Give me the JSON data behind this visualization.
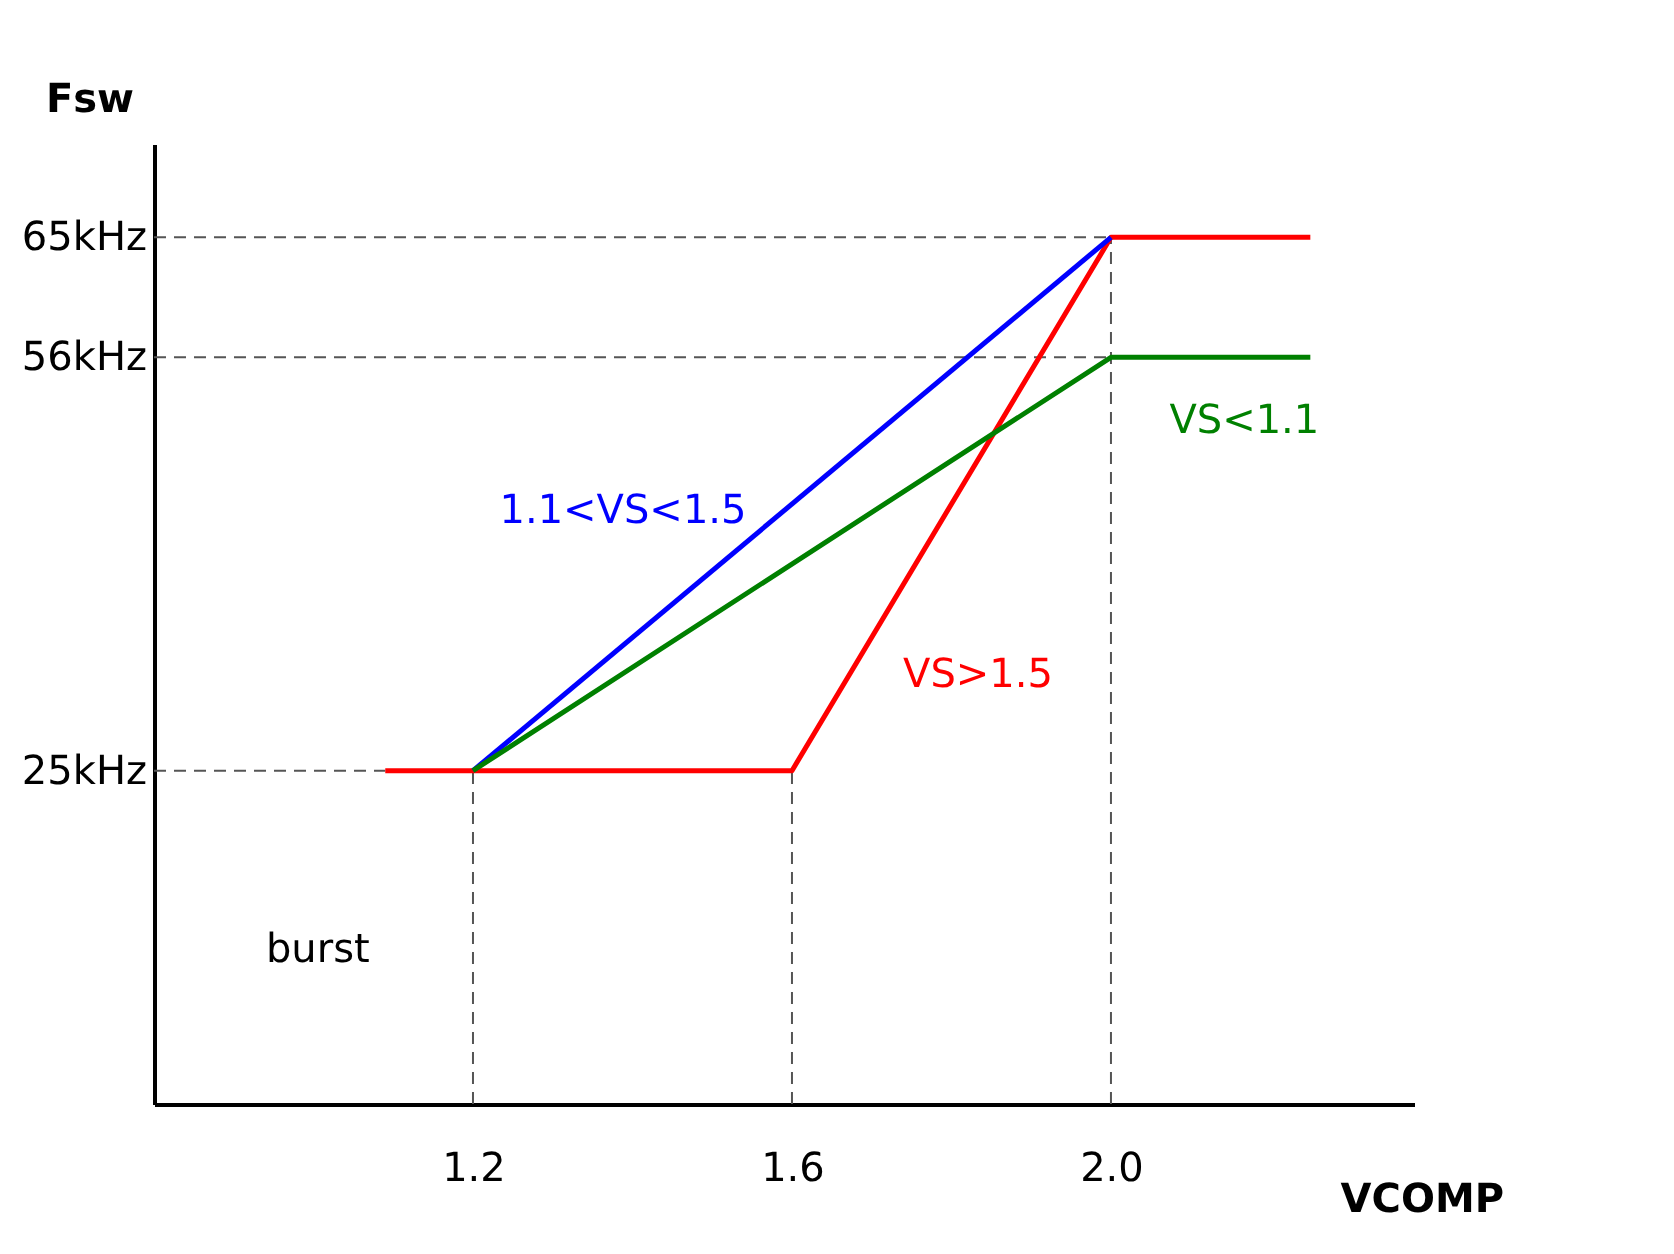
{
  "chart_data": {
    "type": "line",
    "xlabel": "VCOMP",
    "ylabel": "Fsw",
    "xlim": [
      0.8,
      2.38
    ],
    "ylim": [
      0,
      72
    ],
    "xticks": [
      1.2,
      1.6,
      {
        "value": 2.0,
        "label": "2.0"
      }
    ],
    "yticks": [
      {
        "value": 25,
        "label": "25kHz"
      },
      {
        "value": 56,
        "label": "56kHz"
      },
      {
        "value": 65,
        "label": "65kHz"
      }
    ],
    "series": [
      {
        "name": "VS>1.5",
        "color": "#ff0000",
        "x": [
          1.09,
          1.6,
          2.0,
          2.25
        ],
        "values": [
          25,
          25,
          65,
          65
        ]
      },
      {
        "name": "1.1<VS<1.5",
        "color": "#0000ff",
        "x": [
          1.2,
          2.0
        ],
        "values": [
          25,
          65
        ]
      },
      {
        "name": "VS<1.1",
        "color": "#008000",
        "x": [
          1.2,
          2.0,
          2.25
        ],
        "values": [
          25,
          56,
          56
        ]
      }
    ],
    "ref_lines": [
      {
        "axis": "y",
        "value": 25,
        "line_style": "dashed",
        "color": "#555555"
      },
      {
        "axis": "y",
        "value": 56,
        "line_style": "dashed",
        "color": "#555555"
      },
      {
        "axis": "y",
        "value": 65,
        "line_style": "dashed",
        "color": "#555555"
      },
      {
        "axis": "x",
        "value": 1.2,
        "line_style": "dashed",
        "color": "#555555"
      },
      {
        "axis": "x",
        "value": 1.6,
        "line_style": "dashed",
        "color": "#555555"
      },
      {
        "axis": "x",
        "value": 2.0,
        "line_style": "dashed",
        "color": "#555555"
      }
    ],
    "annotations": [
      "burst"
    ],
    "grid": false,
    "line_style": "solid",
    "marker": "none"
  }
}
